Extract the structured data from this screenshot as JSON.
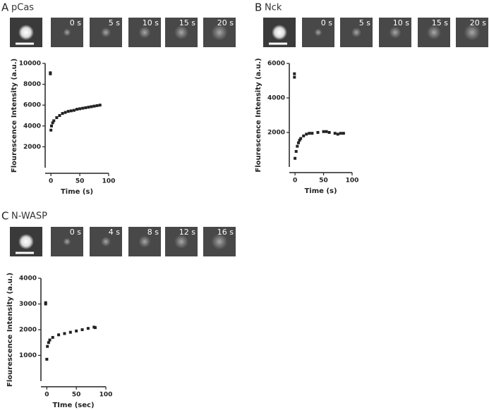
{
  "chart_data": [
    {
      "type": "scatter",
      "panel": "A",
      "protein": "pCas",
      "frames": [
        "0 s",
        "5 s",
        "10 s",
        "15 s",
        "20 s"
      ],
      "xlabel": "Time (s)",
      "ylabel": "Flourescence Intensity (a.u.)",
      "color": "#222222",
      "x": [
        -1,
        -1,
        0,
        1,
        3,
        5,
        10,
        15,
        20,
        25,
        30,
        35,
        40,
        45,
        50,
        55,
        60,
        65,
        70,
        75,
        80,
        85
      ],
      "values": [
        9100,
        9000,
        3600,
        4000,
        4300,
        4500,
        4800,
        5000,
        5200,
        5300,
        5400,
        5450,
        5500,
        5600,
        5650,
        5700,
        5750,
        5800,
        5850,
        5900,
        5950,
        6000
      ],
      "xlim": [
        -10,
        100
      ],
      "ylim": [
        0,
        10000
      ],
      "xticks": [
        0,
        50,
        100
      ],
      "yticks": [
        2000,
        4000,
        6000,
        8000,
        10000
      ]
    },
    {
      "type": "scatter",
      "panel": "B",
      "protein": "Nck",
      "frames": [
        "0 s",
        "5 s",
        "10 s",
        "15 s",
        "20 s"
      ],
      "xlabel": "Time (s)",
      "ylabel": "Flourescence Intensity (a.u.)",
      "color": "#222222",
      "x": [
        -1,
        -1,
        0,
        2,
        4,
        6,
        8,
        10,
        15,
        20,
        25,
        30,
        40,
        50,
        55,
        60,
        70,
        75,
        80,
        85
      ],
      "values": [
        5400,
        5200,
        500,
        900,
        1200,
        1400,
        1550,
        1650,
        1800,
        1900,
        1950,
        1950,
        2000,
        2050,
        2050,
        2000,
        1950,
        1900,
        1950,
        1950
      ],
      "xlim": [
        -10,
        100
      ],
      "ylim": [
        0,
        6000
      ],
      "xticks": [
        0,
        50,
        100
      ],
      "yticks": [
        2000,
        4000,
        6000
      ]
    },
    {
      "type": "scatter",
      "panel": "C",
      "protein": "N-WASP",
      "frames": [
        "0 s",
        "4 s",
        "8 s",
        "12 s",
        "16 s"
      ],
      "xlabel": "TIme (sec)",
      "ylabel": "Flourescence Intensity (a.u.)",
      "color": "#222222",
      "x": [
        -2,
        -2,
        0,
        1,
        3,
        5,
        10,
        20,
        30,
        40,
        50,
        60,
        70,
        80,
        82
      ],
      "values": [
        3050,
        3000,
        850,
        1350,
        1500,
        1600,
        1700,
        1800,
        1850,
        1900,
        1950,
        2000,
        2050,
        2100,
        2080
      ],
      "xlim": [
        -10,
        100
      ],
      "ylim": [
        0,
        4000
      ],
      "xticks": [
        0,
        50,
        100
      ],
      "yticks": [
        1000,
        2000,
        3000,
        4000
      ]
    }
  ]
}
